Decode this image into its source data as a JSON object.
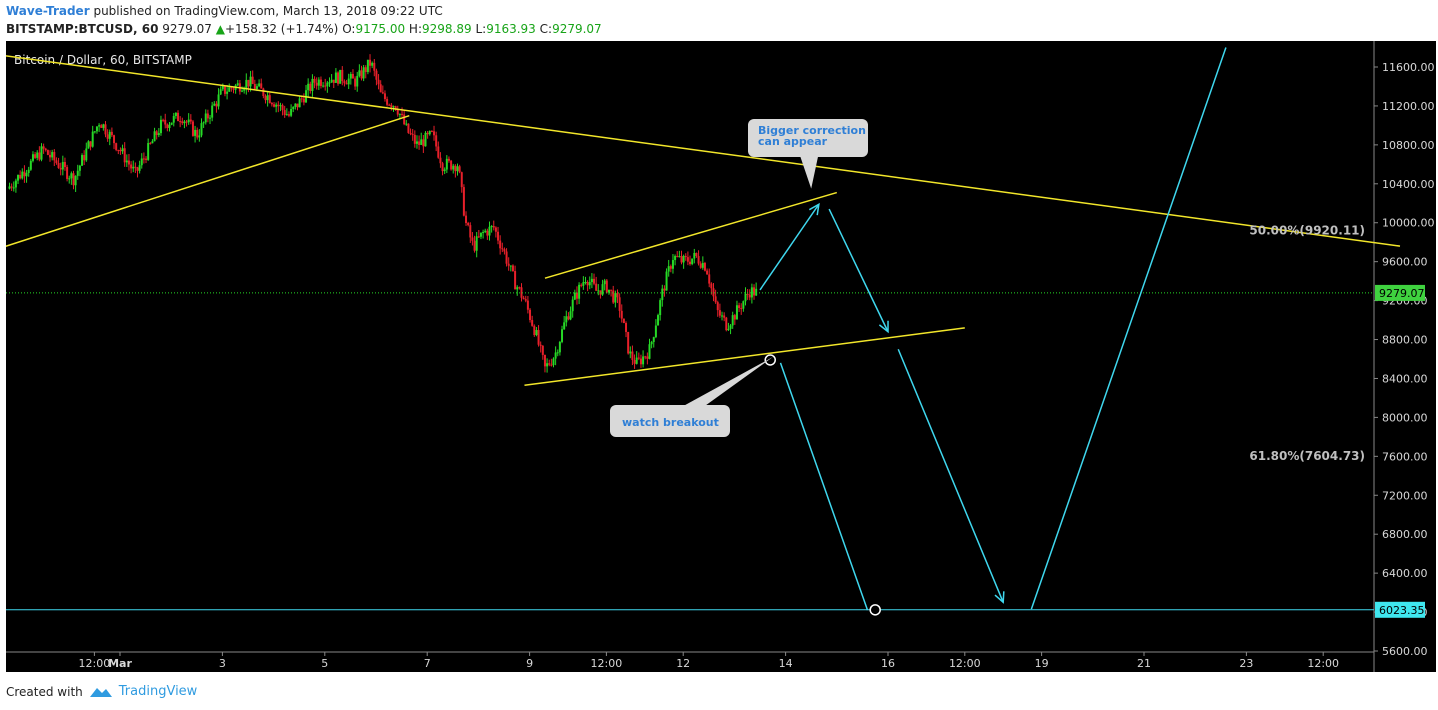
{
  "header": {
    "author": "Wave-Trader",
    "published_text": "published on TradingView.com, March 13, 2018 09:22 UTC",
    "symbol": "BITSTAMP:BTCUSD, 60",
    "last": "9279.07",
    "change": "+158.32 (+1.74%)",
    "open_label": "O:",
    "open": "9175.00",
    "high_label": "H:",
    "high": "9298.89",
    "low_label": "L:",
    "low": "9163.93",
    "close_label": "C:",
    "close": "9279.07"
  },
  "footer": {
    "created_with": "Created with",
    "brand": "TradingView"
  },
  "colors": {
    "up": "#26d926",
    "down": "#e8202a",
    "trendline": "#f2e62a",
    "projection": "#3fd7ee",
    "background": "#000000",
    "price_badge": "#3fd23f",
    "target_badge": "#3fe7ef"
  },
  "chart_data": {
    "type": "candlestick",
    "title": "Bitcoin / Dollar, 60, BITSTAMP",
    "ylim": [
      5600,
      11800
    ],
    "y_ticks": [
      11600,
      11200,
      10800,
      10400,
      10000,
      9600,
      9200,
      8800,
      8400,
      8000,
      7600,
      7200,
      6800,
      6400,
      6000,
      5600
    ],
    "y_tick_labels": [
      "11600.00",
      "11200.00",
      "10800.00",
      "10400.00",
      "10000.00",
      "9600.00",
      "9200.00",
      "8800.00",
      "8400.00",
      "8000.00",
      "7600.00",
      "7200.00",
      "6800.00",
      "6400.00",
      "6000.00",
      "5600.00"
    ],
    "x_ticks": [
      {
        "label": "12:00",
        "day": -0.5
      },
      {
        "label": "Mar",
        "day": 0
      },
      {
        "label": "3",
        "day": 2
      },
      {
        "label": "5",
        "day": 4
      },
      {
        "label": "7",
        "day": 6
      },
      {
        "label": "9",
        "day": 8
      },
      {
        "label": "12:00",
        "day": 9.5
      },
      {
        "label": "12",
        "day": 11
      },
      {
        "label": "14",
        "day": 13
      },
      {
        "label": "16",
        "day": 15
      },
      {
        "label": "12:00",
        "day": 16.5
      },
      {
        "label": "19",
        "day": 18
      },
      {
        "label": "21",
        "day": 20
      },
      {
        "label": "23",
        "day": 22
      },
      {
        "label": "12:00",
        "day": 23.5
      }
    ],
    "price_path": [
      [
        -2.2,
        10350
      ],
      [
        -1.5,
        10750
      ],
      [
        -0.9,
        10450
      ],
      [
        -0.4,
        11050
      ],
      [
        0.0,
        10750
      ],
      [
        0.3,
        10500
      ],
      [
        0.8,
        11000
      ],
      [
        1.2,
        11100
      ],
      [
        1.5,
        10900
      ],
      [
        2.0,
        11350
      ],
      [
        2.5,
        11450
      ],
      [
        2.9,
        11300
      ],
      [
        3.3,
        11100
      ],
      [
        3.8,
        11450
      ],
      [
        4.3,
        11500
      ],
      [
        4.6,
        11450
      ],
      [
        4.9,
        11650
      ],
      [
        5.1,
        11300
      ],
      [
        5.4,
        11200
      ],
      [
        5.6,
        10950
      ],
      [
        5.8,
        10800
      ],
      [
        6.1,
        10900
      ],
      [
        6.3,
        10600
      ],
      [
        6.6,
        10600
      ],
      [
        6.75,
        10000
      ],
      [
        6.9,
        9750
      ],
      [
        7.1,
        9900
      ],
      [
        7.3,
        9950
      ],
      [
        7.5,
        9700
      ],
      [
        7.7,
        9400
      ],
      [
        7.9,
        9200
      ],
      [
        8.1,
        8900
      ],
      [
        8.3,
        8500
      ],
      [
        8.5,
        8650
      ],
      [
        8.7,
        9000
      ],
      [
        8.9,
        9250
      ],
      [
        9.1,
        9450
      ],
      [
        9.3,
        9300
      ],
      [
        9.5,
        9350
      ],
      [
        9.75,
        9150
      ],
      [
        9.95,
        8650
      ],
      [
        10.1,
        8550
      ],
      [
        10.35,
        8700
      ],
      [
        10.6,
        9300
      ],
      [
        10.8,
        9650
      ],
      [
        11.0,
        9600
      ],
      [
        11.25,
        9650
      ],
      [
        11.45,
        9550
      ],
      [
        11.65,
        9100
      ],
      [
        11.85,
        8950
      ],
      [
        12.0,
        9050
      ],
      [
        12.3,
        9300
      ],
      [
        12.45,
        9279
      ]
    ],
    "trendlines": [
      {
        "name": "upper-resistance",
        "x1": -3.7,
        "y1": 11820,
        "x2": 25.0,
        "y2": 9760
      },
      {
        "name": "rising-support",
        "x1": -3.75,
        "y1": 9500,
        "x2": 5.65,
        "y2": 11100
      },
      {
        "name": "channel-top",
        "x1": 8.3,
        "y1": 9430,
        "x2": 14.0,
        "y2": 10310
      },
      {
        "name": "channel-bottom",
        "x1": 7.9,
        "y1": 8330,
        "x2": 16.5,
        "y2": 8920
      }
    ],
    "projection_arrows": [
      {
        "x1": 12.5,
        "y1": 9310,
        "x2": 13.65,
        "y2": 10190
      },
      {
        "x1": 13.85,
        "y1": 10140,
        "x2": 15.0,
        "y2": 8880
      },
      {
        "x1": 15.2,
        "y1": 8700,
        "x2": 17.25,
        "y2": 6100
      }
    ],
    "projection_lines": [
      {
        "x1": 12.9,
        "y1": 8560,
        "x2": 14.6,
        "y2": 6020
      },
      {
        "x1": 17.8,
        "y1": 6030,
        "x2": 21.6,
        "y2": 11800
      }
    ],
    "markers": [
      {
        "name": "breakout-point",
        "x": 12.7,
        "y": 8590
      },
      {
        "name": "target-point",
        "x": 14.75,
        "y": 6023
      }
    ],
    "horizontal_lines": [
      {
        "name": "last-price-line",
        "value": 9279.07,
        "style": "dotted"
      },
      {
        "name": "target-line",
        "value": 6023.35,
        "style": "solid"
      }
    ],
    "price_labels": [
      {
        "name": "last-price",
        "value": 9279.07,
        "text": "9279.07"
      },
      {
        "name": "target-price",
        "value": 6023.35,
        "text": "6023.35"
      }
    ],
    "fib_levels": [
      {
        "text": "50.00%(9920.11)",
        "value": 9920.11
      },
      {
        "text": "61.80%(7604.73)",
        "value": 7604.73
      }
    ],
    "annotations": [
      {
        "name": "callout-bigger-correction",
        "lines": [
          "Bigger correction",
          "can appear"
        ],
        "pointer": [
          13.5,
          10350
        ]
      },
      {
        "name": "callout-watch-breakout",
        "lines": [
          "watch breakout"
        ],
        "pointer": [
          12.75,
          8620
        ]
      }
    ]
  }
}
